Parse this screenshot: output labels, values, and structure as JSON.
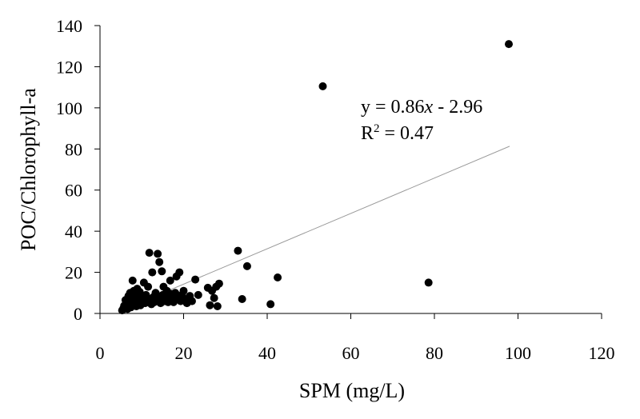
{
  "chart_data": {
    "type": "scatter",
    "xlabel": "SPM (mg/L)",
    "ylabel": "POC/Chlorophyll-a",
    "xlim": [
      0,
      120
    ],
    "ylim": [
      0,
      140
    ],
    "xticks": [
      0,
      20,
      40,
      60,
      80,
      100,
      120
    ],
    "yticks": [
      0,
      20,
      40,
      60,
      80,
      100,
      120,
      140
    ],
    "xtick_labels": [
      "0",
      "20",
      "40",
      "60",
      "80",
      "100",
      "120"
    ],
    "ytick_labels": [
      "0",
      "20",
      "40",
      "60",
      "80",
      "100",
      "120",
      "140"
    ],
    "grid": false,
    "marker_color": "#000000",
    "trendline": {
      "slope": 0.86,
      "intercept": -2.96,
      "x_range": [
        5.5,
        98
      ],
      "color": "#999999"
    },
    "annotation": {
      "equation_prefix": "y = 0.86",
      "equation_var": "x",
      "equation_suffix": " - 2.96",
      "r2_base": "R",
      "r2_sup": "2",
      "r2_rest": " = 0.47"
    },
    "points": [
      [
        5.3,
        1.5
      ],
      [
        5.6,
        2.5
      ],
      [
        5.8,
        3.8
      ],
      [
        6.1,
        6.5
      ],
      [
        6.4,
        4.0
      ],
      [
        6.6,
        2.2
      ],
      [
        6.8,
        8.5
      ],
      [
        7.0,
        5.5
      ],
      [
        7.2,
        10.0
      ],
      [
        7.4,
        3.0
      ],
      [
        7.6,
        7.0
      ],
      [
        7.8,
        16.0
      ],
      [
        8.0,
        4.5
      ],
      [
        8.1,
        11.0
      ],
      [
        8.3,
        6.0
      ],
      [
        8.5,
        8.0
      ],
      [
        8.7,
        3.5
      ],
      [
        8.9,
        12.0
      ],
      [
        9.1,
        5.0
      ],
      [
        9.3,
        7.5
      ],
      [
        9.5,
        10.5
      ],
      [
        9.7,
        4.0
      ],
      [
        10.0,
        6.5
      ],
      [
        10.2,
        8.5
      ],
      [
        10.5,
        15.0
      ],
      [
        10.8,
        5.0
      ],
      [
        11.0,
        9.0
      ],
      [
        11.3,
        6.0
      ],
      [
        11.5,
        13.0
      ],
      [
        11.8,
        29.5
      ],
      [
        12.0,
        7.0
      ],
      [
        12.3,
        4.5
      ],
      [
        12.5,
        20.0
      ],
      [
        12.8,
        8.0
      ],
      [
        13.0,
        5.5
      ],
      [
        13.3,
        10.0
      ],
      [
        13.5,
        6.5
      ],
      [
        13.8,
        29.0
      ],
      [
        14.0,
        7.5
      ],
      [
        14.2,
        25.0
      ],
      [
        14.5,
        5.0
      ],
      [
        14.8,
        20.5
      ],
      [
        15.0,
        9.0
      ],
      [
        15.2,
        13.0
      ],
      [
        15.5,
        6.0
      ],
      [
        15.8,
        8.0
      ],
      [
        16.0,
        11.0
      ],
      [
        16.3,
        5.5
      ],
      [
        16.5,
        7.0
      ],
      [
        16.8,
        16.0
      ],
      [
        17.0,
        9.5
      ],
      [
        17.3,
        6.5
      ],
      [
        17.6,
        5.5
      ],
      [
        18.0,
        10.0
      ],
      [
        18.3,
        18.0
      ],
      [
        18.6,
        8.0
      ],
      [
        19.0,
        20.0
      ],
      [
        19.3,
        6.0
      ],
      [
        19.6,
        9.0
      ],
      [
        20.0,
        11.0
      ],
      [
        20.4,
        7.0
      ],
      [
        20.8,
        5.0
      ],
      [
        21.5,
        8.5
      ],
      [
        22.0,
        6.0
      ],
      [
        22.8,
        16.5
      ],
      [
        23.5,
        9.0
      ],
      [
        25.8,
        12.5
      ],
      [
        26.3,
        4.0
      ],
      [
        26.8,
        11.0
      ],
      [
        27.3,
        7.5
      ],
      [
        27.8,
        13.0
      ],
      [
        28.1,
        3.5
      ],
      [
        28.5,
        14.5
      ],
      [
        33.0,
        30.5
      ],
      [
        34.0,
        7.0
      ],
      [
        35.2,
        23.0
      ],
      [
        40.8,
        4.5
      ],
      [
        42.5,
        17.5
      ],
      [
        53.3,
        110.5
      ],
      [
        78.6,
        15.0
      ],
      [
        97.8,
        131.0
      ]
    ]
  }
}
